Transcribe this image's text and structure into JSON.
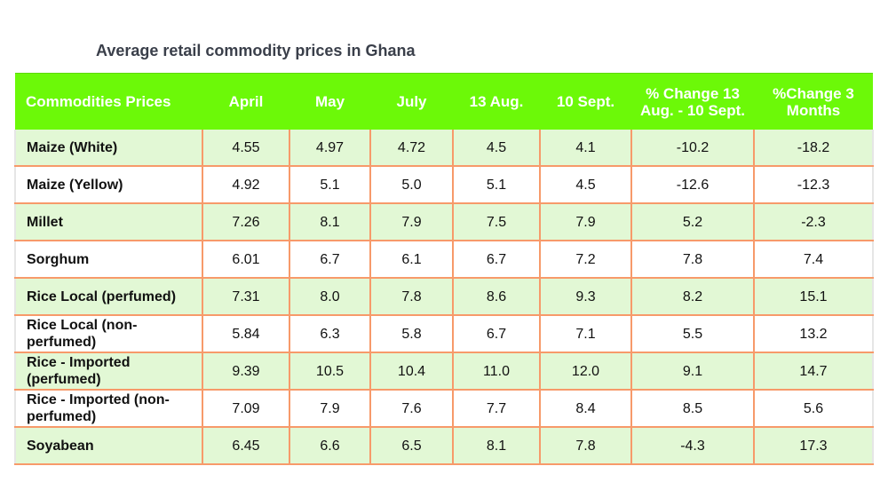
{
  "chart_data": {
    "type": "table",
    "title": "Average retail commodity prices in Ghana",
    "columns": [
      "Commodities Prices",
      "April",
      "May",
      "July",
      "13 Aug.",
      "10 Sept.",
      "% Change 13 Aug. - 10 Sept.",
      "%Change 3 Months"
    ],
    "rows": [
      [
        "Maize (White)",
        "4.55",
        "4.97",
        "4.72",
        "4.5",
        "4.1",
        "-10.2",
        "-18.2"
      ],
      [
        "Maize (Yellow)",
        "4.92",
        "5.1",
        "5.0",
        "5.1",
        "4.5",
        "-12.6",
        "-12.3"
      ],
      [
        "Millet",
        "7.26",
        "8.1",
        "7.9",
        "7.5",
        "7.9",
        "5.2",
        "-2.3"
      ],
      [
        "Sorghum",
        "6.01",
        "6.7",
        "6.1",
        "6.7",
        "7.2",
        "7.8",
        "7.4"
      ],
      [
        "Rice Local (perfumed)",
        "7.31",
        "8.0",
        "7.8",
        "8.6",
        "9.3",
        "8.2",
        "15.1"
      ],
      [
        "Rice Local (non-perfumed)",
        "5.84",
        "6.3",
        "5.8",
        "6.7",
        "7.1",
        "5.5",
        "13.2"
      ],
      [
        "Rice - Imported (perfumed)",
        "9.39",
        "10.5",
        "10.4",
        "11.0",
        "12.0",
        "9.1",
        "14.7"
      ],
      [
        "Rice - Imported (non-perfumed)",
        "7.09",
        "7.9",
        "7.6",
        "7.7",
        "8.4",
        "8.5",
        "5.6"
      ],
      [
        "Soyabean",
        "6.45",
        "6.6",
        "6.5",
        "8.1",
        "7.8",
        "-4.3",
        "17.3"
      ]
    ],
    "colors": {
      "header": "#6cf908",
      "row_alt": "#e2f8d5",
      "border": "#f79a6a"
    }
  }
}
